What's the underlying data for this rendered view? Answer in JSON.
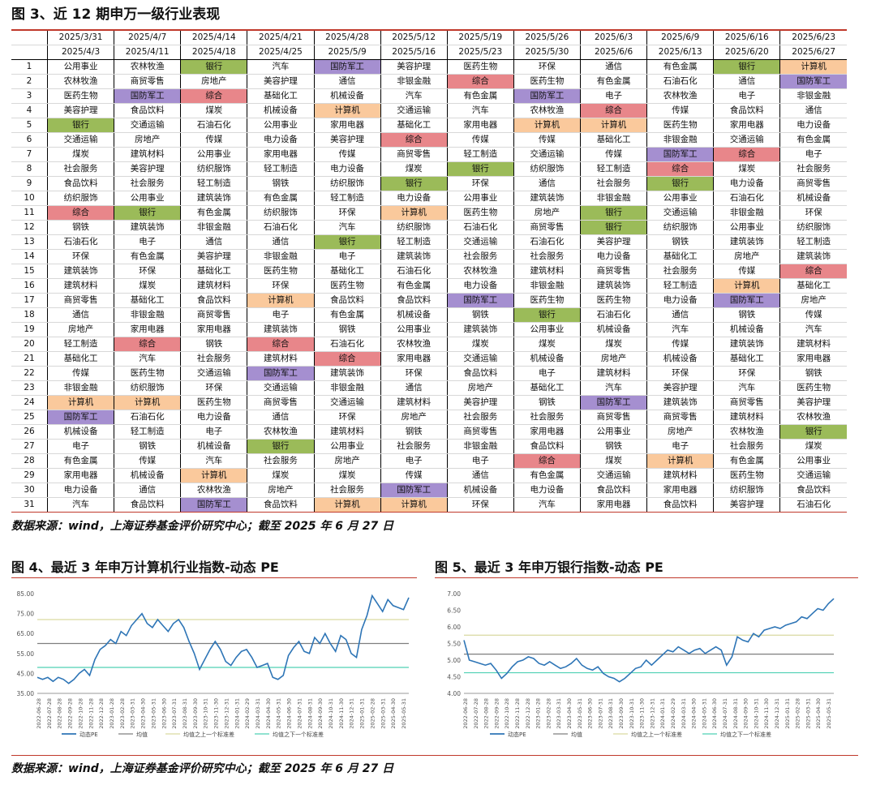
{
  "fig3": {
    "title": "图 3、近 12 期申万一级行业表现",
    "source": "数据来源：wind，上海证券基金评价研究中心；截至 2025 年 6 月 27 日"
  },
  "chart_data": [
    {
      "type": "table",
      "start_dates": [
        "2025/3/31",
        "2025/4/7",
        "2025/4/14",
        "2025/4/21",
        "2025/4/28",
        "2025/5/12",
        "2025/5/19",
        "2025/5/26",
        "2025/6/3",
        "2025/6/9",
        "2025/6/16",
        "2025/6/23"
      ],
      "end_dates": [
        "2025/4/3",
        "2025/4/11",
        "2025/4/18",
        "2025/4/25",
        "2025/5/9",
        "2025/5/16",
        "2025/5/23",
        "2025/5/30",
        "2025/6/6",
        "2025/6/13",
        "2025/6/20",
        "2025/6/27"
      ],
      "highlight_colors": {
        "银行": "#9bbb59",
        "综合": "#e8868a",
        "国防军工": "#a58fd0",
        "计算机": "#fac99c"
      },
      "rows": [
        [
          "公用事业",
          "农林牧渔",
          "银行",
          "汽车",
          "国防军工",
          "美容护理",
          "医药生物",
          "环保",
          "通信",
          "有色金属",
          "银行",
          "计算机"
        ],
        [
          "农林牧渔",
          "商贸零售",
          "房地产",
          "美容护理",
          "通信",
          "非银金融",
          "综合",
          "医药生物",
          "有色金属",
          "石油石化",
          "通信",
          "国防军工"
        ],
        [
          "医药生物",
          "国防军工",
          "综合",
          "基础化工",
          "机械设备",
          "汽车",
          "有色金属",
          "国防军工",
          "电子",
          "农林牧渔",
          "电子",
          "非银金融"
        ],
        [
          "美容护理",
          "食品饮料",
          "煤炭",
          "机械设备",
          "计算机",
          "交通运输",
          "汽车",
          "农林牧渔",
          "综合",
          "传媒",
          "食品饮料",
          "通信"
        ],
        [
          "银行",
          "交通运输",
          "石油石化",
          "公用事业",
          "家用电器",
          "基础化工",
          "家用电器",
          "计算机",
          "计算机",
          "医药生物",
          "家用电器",
          "电力设备"
        ],
        [
          "交通运输",
          "房地产",
          "传媒",
          "电力设备",
          "美容护理",
          "综合",
          "传媒",
          "传媒",
          "基础化工",
          "非银金融",
          "交通运输",
          "有色金属"
        ],
        [
          "煤炭",
          "建筑材料",
          "公用事业",
          "家用电器",
          "传媒",
          "商贸零售",
          "轻工制造",
          "交通运输",
          "传媒",
          "国防军工",
          "综合",
          "电子"
        ],
        [
          "社会服务",
          "美容护理",
          "纺织服饰",
          "轻工制造",
          "电力设备",
          "煤炭",
          "银行",
          "纺织服饰",
          "轻工制造",
          "综合",
          "煤炭",
          "社会服务"
        ],
        [
          "食品饮料",
          "社会服务",
          "轻工制造",
          "钢铁",
          "纺织服饰",
          "银行",
          "环保",
          "通信",
          "社会服务",
          "银行",
          "电力设备",
          "商贸零售"
        ],
        [
          "纺织服饰",
          "公用事业",
          "建筑装饰",
          "有色金属",
          "轻工制造",
          "电力设备",
          "公用事业",
          "建筑装饰",
          "非银金融",
          "公用事业",
          "石油石化",
          "机械设备"
        ],
        [
          "综合",
          "银行",
          "有色金属",
          "纺织服饰",
          "环保",
          "计算机",
          "医药生物",
          "房地产",
          "银行",
          "交通运输",
          "非银金融",
          "环保"
        ],
        [
          "钢铁",
          "建筑装饰",
          "非银金融",
          "石油石化",
          "汽车",
          "纺织服饰",
          "石油石化",
          "商贸零售",
          "银行",
          "纺织服饰",
          "公用事业",
          "纺织服饰"
        ],
        [
          "石油石化",
          "电子",
          "通信",
          "通信",
          "银行",
          "轻工制造",
          "交通运输",
          "石油石化",
          "美容护理",
          "钢铁",
          "建筑装饰",
          "轻工制造"
        ],
        [
          "环保",
          "有色金属",
          "美容护理",
          "非银金融",
          "电子",
          "建筑装饰",
          "社会服务",
          "社会服务",
          "电力设备",
          "基础化工",
          "房地产",
          "建筑装饰"
        ],
        [
          "建筑装饰",
          "环保",
          "基础化工",
          "医药生物",
          "基础化工",
          "石油石化",
          "农林牧渔",
          "建筑材料",
          "商贸零售",
          "社会服务",
          "传媒",
          "综合"
        ],
        [
          "建筑材料",
          "煤炭",
          "建筑材料",
          "环保",
          "医药生物",
          "有色金属",
          "电力设备",
          "非银金融",
          "建筑装饰",
          "轻工制造",
          "计算机",
          "基础化工"
        ],
        [
          "商贸零售",
          "基础化工",
          "食品饮料",
          "计算机",
          "食品饮料",
          "食品饮料",
          "国防军工",
          "医药生物",
          "医药生物",
          "电力设备",
          "国防军工",
          "房地产"
        ],
        [
          "通信",
          "非银金融",
          "商贸零售",
          "电子",
          "有色金属",
          "机械设备",
          "钢铁",
          "银行",
          "石油石化",
          "通信",
          "钢铁",
          "传媒"
        ],
        [
          "房地产",
          "家用电器",
          "家用电器",
          "建筑装饰",
          "钢铁",
          "公用事业",
          "建筑装饰",
          "公用事业",
          "机械设备",
          "汽车",
          "机械设备",
          "汽车"
        ],
        [
          "轻工制造",
          "综合",
          "钢铁",
          "综合",
          "石油石化",
          "农林牧渔",
          "煤炭",
          "煤炭",
          "煤炭",
          "传媒",
          "建筑装饰",
          "建筑材料"
        ],
        [
          "基础化工",
          "汽车",
          "社会服务",
          "建筑材料",
          "综合",
          "家用电器",
          "交通运输",
          "机械设备",
          "房地产",
          "机械设备",
          "基础化工",
          "家用电器"
        ],
        [
          "传媒",
          "医药生物",
          "交通运输",
          "国防军工",
          "建筑装饰",
          "环保",
          "食品饮料",
          "电子",
          "建筑材料",
          "环保",
          "环保",
          "钢铁"
        ],
        [
          "非银金融",
          "纺织服饰",
          "环保",
          "交通运输",
          "非银金融",
          "通信",
          "房地产",
          "基础化工",
          "汽车",
          "美容护理",
          "汽车",
          "医药生物"
        ],
        [
          "计算机",
          "计算机",
          "医药生物",
          "商贸零售",
          "交通运输",
          "建筑材料",
          "美容护理",
          "钢铁",
          "国防军工",
          "建筑装饰",
          "商贸零售",
          "美容护理"
        ],
        [
          "国防军工",
          "石油石化",
          "电力设备",
          "通信",
          "环保",
          "房地产",
          "社会服务",
          "社会服务",
          "商贸零售",
          "商贸零售",
          "建筑材料",
          "农林牧渔"
        ],
        [
          "机械设备",
          "轻工制造",
          "电子",
          "农林牧渔",
          "建筑材料",
          "钢铁",
          "商贸零售",
          "家用电器",
          "公用事业",
          "房地产",
          "农林牧渔",
          "银行"
        ],
        [
          "电子",
          "钢铁",
          "机械设备",
          "银行",
          "公用事业",
          "社会服务",
          "非银金融",
          "食品饮料",
          "钢铁",
          "电子",
          "社会服务",
          "煤炭"
        ],
        [
          "有色金属",
          "传媒",
          "汽车",
          "社会服务",
          "房地产",
          "电子",
          "电子",
          "综合",
          "煤炭",
          "计算机",
          "有色金属",
          "公用事业"
        ],
        [
          "家用电器",
          "机械设备",
          "计算机",
          "煤炭",
          "煤炭",
          "传媒",
          "通信",
          "有色金属",
          "交通运输",
          "建筑材料",
          "医药生物",
          "交通运输"
        ],
        [
          "电力设备",
          "通信",
          "农林牧渔",
          "房地产",
          "社会服务",
          "国防军工",
          "机械设备",
          "电力设备",
          "食品饮料",
          "家用电器",
          "纺织服饰",
          "食品饮料"
        ],
        [
          "汽车",
          "食品饮料",
          "国防军工",
          "食品饮料",
          "计算机",
          "计算机",
          "环保",
          "汽车",
          "家用电器",
          "食品饮料",
          "美容护理",
          "石油石化"
        ]
      ]
    },
    {
      "type": "line",
      "title": "图 4、最近 3 年申万计算机行业指数-动态 PE",
      "ylim": [
        35,
        85
      ],
      "y_ticks": [
        "35.00",
        "45.00",
        "55.00",
        "65.00",
        "75.00",
        "85.00"
      ],
      "x_ticks": [
        "2022-06-28",
        "2022-07-28",
        "2022-08-28",
        "2022-09-28",
        "2022-10-28",
        "2022-11-28",
        "2022-12-28",
        "2023-01-28",
        "2023-02-28",
        "2023-03-31",
        "2023-04-30",
        "2023-05-31",
        "2023-06-30",
        "2023-07-31",
        "2023-08-31",
        "2023-09-30",
        "2023-10-31",
        "2023-11-30",
        "2023-12-31",
        "2024-01-31",
        "2024-02-29",
        "2024-03-31",
        "2024-04-30",
        "2024-05-31",
        "2024-06-30",
        "2024-07-31",
        "2024-08-31",
        "2024-09-30",
        "2024-10-31",
        "2024-11-30",
        "2024-12-31",
        "2025-01-31",
        "2025-02-28",
        "2025-03-31",
        "2025-04-30",
        "2025-05-31"
      ],
      "mean": 60,
      "upper": 72,
      "lower": 48,
      "series": [
        {
          "name": "动态PE",
          "color": "#2e75b6",
          "values": [
            43,
            42,
            43,
            41,
            43,
            42,
            40,
            42,
            45,
            47,
            44,
            52,
            57,
            59,
            62,
            60,
            66,
            64,
            69,
            72,
            75,
            70,
            68,
            72,
            69,
            66,
            70,
            72,
            68,
            61,
            55,
            47,
            52,
            57,
            61,
            57,
            51,
            49,
            53,
            56,
            57,
            53,
            48,
            49,
            50,
            43,
            42,
            44,
            54,
            58,
            61,
            56,
            55,
            63,
            60,
            65,
            60,
            56,
            64,
            62,
            55,
            53,
            67,
            74,
            84,
            80,
            76,
            82,
            79,
            78,
            77,
            83
          ]
        }
      ],
      "legend": [
        "动态PE",
        "均值",
        "均值之上一个标准差",
        "均值之下一个标准差"
      ],
      "source": "数据来源：wind，上海证券基金评价研究中心；截至 2025 年 6 月 27 日"
    },
    {
      "type": "line",
      "title": "图 5、最近 3 年申万银行指数-动态 PE",
      "ylim": [
        4.0,
        7.0
      ],
      "y_ticks": [
        "4.00",
        "4.50",
        "5.00",
        "5.50",
        "6.00",
        "6.50",
        "7.00"
      ],
      "x_ticks": [
        "2022-06-28",
        "2022-07-28",
        "2022-08-28",
        "2022-09-28",
        "2022-10-28",
        "2022-11-28",
        "2022-12-28",
        "2023-01-28",
        "2023-02-28",
        "2023-03-31",
        "2023-04-30",
        "2023-05-31",
        "2023-06-30",
        "2023-07-31",
        "2023-08-31",
        "2023-09-30",
        "2023-10-31",
        "2023-11-30",
        "2023-12-31",
        "2024-01-31",
        "2024-02-29",
        "2024-03-31",
        "2024-04-30",
        "2024-05-31",
        "2024-06-30",
        "2024-07-31",
        "2024-08-31",
        "2024-09-30",
        "2024-10-31",
        "2024-11-30",
        "2024-12-31",
        "2025-01-31",
        "2025-02-28",
        "2025-03-31",
        "2025-04-30",
        "2025-05-31"
      ],
      "mean": 5.18,
      "upper": 5.75,
      "lower": 4.62,
      "series": [
        {
          "name": "动态PE",
          "color": "#2e75b6",
          "values": [
            5.6,
            5.0,
            4.95,
            4.9,
            4.85,
            4.9,
            4.7,
            4.45,
            4.6,
            4.8,
            4.95,
            5.0,
            5.1,
            5.05,
            4.9,
            4.85,
            4.95,
            4.85,
            4.75,
            4.8,
            4.9,
            5.05,
            4.85,
            4.75,
            4.7,
            4.8,
            4.6,
            4.5,
            4.45,
            4.35,
            4.45,
            4.6,
            4.75,
            4.8,
            5.0,
            4.85,
            5.0,
            5.15,
            5.3,
            5.25,
            5.4,
            5.3,
            5.2,
            5.3,
            5.35,
            5.2,
            5.3,
            5.4,
            5.3,
            4.85,
            5.1,
            5.7,
            5.6,
            5.55,
            5.8,
            5.7,
            5.9,
            5.95,
            6.0,
            5.95,
            6.05,
            6.1,
            6.15,
            6.3,
            6.25,
            6.4,
            6.55,
            6.5,
            6.7,
            6.85
          ]
        }
      ],
      "legend": [
        "动态PE",
        "均值",
        "均值之上一个标准差",
        "均值之下一个标准差"
      ],
      "source": "数据来源：wind，上海证券基金评价研究中心；截至 2025 年 6 月 27 日"
    }
  ]
}
